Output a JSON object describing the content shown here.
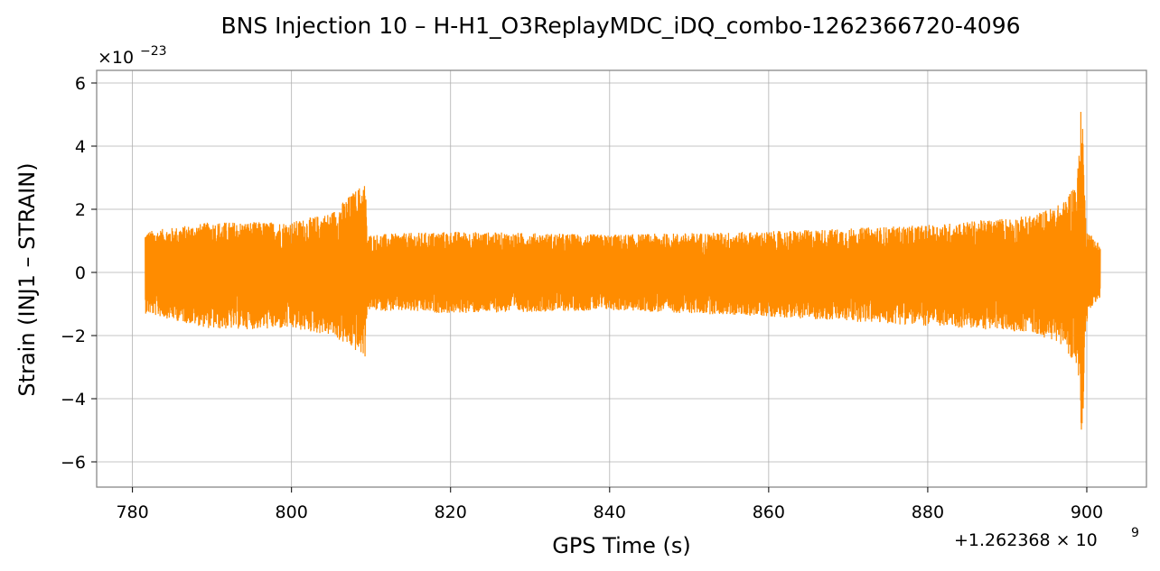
{
  "chart_data": {
    "type": "line",
    "title": "BNS Injection 10 – H-H1_O3ReplayMDC_iDQ_combo-1262366720-4096",
    "xlabel": "GPS Time (s)",
    "ylabel": "Strain (INJ1 – STRAIN)",
    "x_offset_label": "+1.262368 × 10",
    "x_offset_exponent": "9",
    "y_scale_label": "×10",
    "y_scale_exponent": "−23",
    "xlim": [
      775.5,
      907.5
    ],
    "ylim": [
      -6.8,
      6.4
    ],
    "x_ticks": [
      780,
      800,
      820,
      840,
      860,
      880,
      900
    ],
    "x_tick_labels": [
      "780",
      "800",
      "820",
      "840",
      "860",
      "880",
      "900"
    ],
    "y_ticks": [
      -6,
      -4,
      -2,
      0,
      2,
      4,
      6
    ],
    "y_tick_labels": [
      "−6",
      "−4",
      "−2",
      "0",
      "2",
      "4",
      "6"
    ],
    "grid": true,
    "series": [
      {
        "color": "#ff8c00",
        "x_range": [
          781.6,
          901.7
        ],
        "envelope": {
          "x": [
            781.6,
            790,
            800,
            805,
            809.3,
            809.5,
            820,
            840,
            860,
            880,
            893,
            897,
            898.8,
            899.4,
            899.8,
            900.2,
            901.7
          ],
          "hi": [
            1.3,
            1.6,
            1.6,
            1.9,
            2.9,
            1.2,
            1.3,
            1.2,
            1.3,
            1.5,
            1.8,
            2.2,
            3.0,
            5.8,
            2.0,
            1.3,
            0.9
          ],
          "lo": [
            -1.3,
            -1.8,
            -1.8,
            -2.0,
            -2.7,
            -1.2,
            -1.3,
            -1.2,
            -1.4,
            -1.7,
            -1.9,
            -2.3,
            -3.0,
            -6.2,
            -2.0,
            -1.2,
            -0.8
          ]
        }
      }
    ]
  }
}
